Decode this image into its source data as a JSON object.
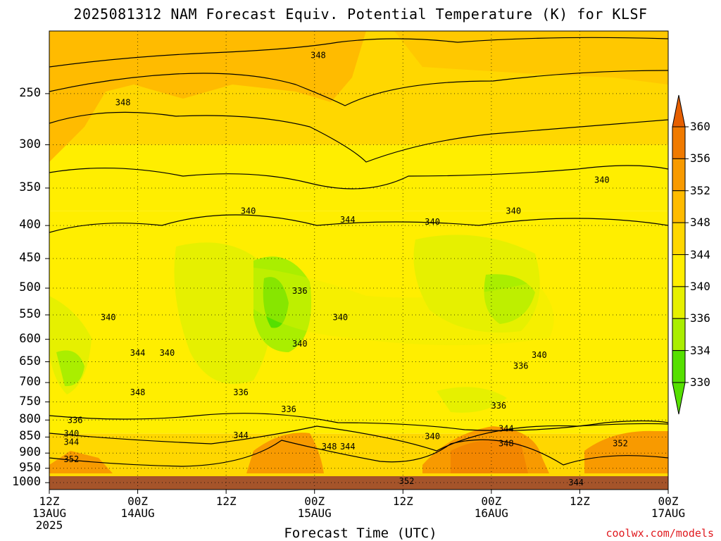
{
  "title": "2025081312 NAM Forecast Equiv. Potential Temperature (K) for KLSF",
  "x_axis_title": "Forecast Time (UTC)",
  "credit": "coolwx.com/models",
  "colors": {
    "ground": "#a5542a",
    "plot_border": "#000000"
  },
  "chart_data": {
    "type": "heatmap",
    "title": "2025081312 NAM Forecast Equiv. Potential Temperature (K) for KLSF",
    "xlabel": "Forecast Time (UTC)",
    "ylabel": "",
    "variable_units": "K",
    "y_scale": "log",
    "y_reversed": true,
    "ylim": [
      1025,
      200
    ],
    "y_ticks": [
      250,
      300,
      350,
      400,
      450,
      500,
      550,
      600,
      650,
      700,
      750,
      800,
      850,
      900,
      950,
      1000
    ],
    "x_hours_range": [
      0,
      84
    ],
    "x_ticks": [
      {
        "hour": 0,
        "lines": [
          "12Z",
          "13AUG",
          "2025"
        ]
      },
      {
        "hour": 12,
        "lines": [
          "00Z",
          "14AUG"
        ]
      },
      {
        "hour": 24,
        "lines": [
          "12Z"
        ]
      },
      {
        "hour": 36,
        "lines": [
          "00Z",
          "15AUG"
        ]
      },
      {
        "hour": 48,
        "lines": [
          "12Z"
        ]
      },
      {
        "hour": 60,
        "lines": [
          "00Z",
          "16AUG"
        ]
      },
      {
        "hour": 72,
        "lines": [
          "12Z"
        ]
      },
      {
        "hour": 84,
        "lines": [
          "00Z",
          "17AUG"
        ]
      }
    ],
    "grid": true,
    "colorbar": {
      "position": "right",
      "levels": [
        {
          "label": "360",
          "color": "#e65f00"
        },
        {
          "label": "356",
          "color": "#f07a00"
        },
        {
          "label": "352",
          "color": "#f89a00"
        },
        {
          "label": "348",
          "color": "#ffbb00"
        },
        {
          "label": "344",
          "color": "#ffd700"
        },
        {
          "label": "340",
          "color": "#ffee00"
        },
        {
          "label": "336",
          "color": "#e6f000"
        },
        {
          "label": "334",
          "color": "#aaee00"
        },
        {
          "label": "330",
          "color": "#55e000"
        }
      ]
    },
    "contour_labels": [
      {
        "value": "348",
        "hour": 36.5,
        "p": 218
      },
      {
        "value": "348",
        "hour": 10,
        "p": 258
      },
      {
        "value": "340",
        "hour": 27,
        "p": 380
      },
      {
        "value": "344",
        "hour": 40.5,
        "p": 392
      },
      {
        "value": "340",
        "hour": 52,
        "p": 395
      },
      {
        "value": "340",
        "hour": 63,
        "p": 380
      },
      {
        "value": "340",
        "hour": 75,
        "p": 340
      },
      {
        "value": "336",
        "hour": 34,
        "p": 505
      },
      {
        "value": "340",
        "hour": 39.5,
        "p": 555
      },
      {
        "value": "340",
        "hour": 8,
        "p": 555
      },
      {
        "value": "344",
        "hour": 12,
        "p": 630
      },
      {
        "value": "340",
        "hour": 16,
        "p": 630
      },
      {
        "value": "340",
        "hour": 34,
        "p": 610
      },
      {
        "value": "348",
        "hour": 12,
        "p": 725
      },
      {
        "value": "336",
        "hour": 26,
        "p": 725
      },
      {
        "value": "336",
        "hour": 32.5,
        "p": 770
      },
      {
        "value": "336",
        "hour": 64,
        "p": 660
      },
      {
        "value": "340",
        "hour": 66.5,
        "p": 635
      },
      {
        "value": "336",
        "hour": 61,
        "p": 760
      },
      {
        "value": "336",
        "hour": 3.5,
        "p": 800
      },
      {
        "value": "340",
        "hour": 3,
        "p": 840
      },
      {
        "value": "344",
        "hour": 3,
        "p": 865
      },
      {
        "value": "344",
        "hour": 26,
        "p": 845
      },
      {
        "value": "352",
        "hour": 3,
        "p": 920
      },
      {
        "value": "348",
        "hour": 38,
        "p": 880
      },
      {
        "value": "344",
        "hour": 40.5,
        "p": 880
      },
      {
        "value": "340",
        "hour": 52,
        "p": 848
      },
      {
        "value": "344",
        "hour": 62,
        "p": 825
      },
      {
        "value": "348",
        "hour": 62,
        "p": 870
      },
      {
        "value": "352",
        "hour": 48.5,
        "p": 995
      },
      {
        "value": "344",
        "hour": 71.5,
        "p": 1000
      },
      {
        "value": "352",
        "hour": 77.5,
        "p": 870
      }
    ]
  }
}
